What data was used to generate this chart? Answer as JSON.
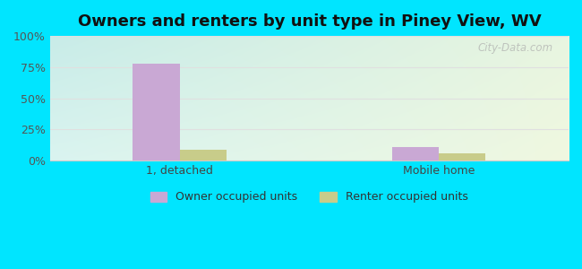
{
  "title": "Owners and renters by unit type in Piney View, WV",
  "categories": [
    "1, detached",
    "Mobile home"
  ],
  "owner_values": [
    78,
    11
  ],
  "renter_values": [
    9,
    6
  ],
  "owner_color": "#c9a8d4",
  "renter_color": "#c8cc8a",
  "bar_width": 0.18,
  "ylim": [
    0,
    100
  ],
  "yticks": [
    0,
    25,
    50,
    75,
    100
  ],
  "yticklabels": [
    "0%",
    "25%",
    "50%",
    "75%",
    "100%"
  ],
  "bg_topleft": "#c8ece8",
  "bg_topright": "#e8f5e0",
  "bg_bottomleft": "#daf4f0",
  "bg_bottomright": "#f0f8e0",
  "outer_color": "#00e5ff",
  "legend_owner": "Owner occupied units",
  "legend_renter": "Renter occupied units",
  "watermark": "City-Data.com",
  "title_fontsize": 13,
  "grid_color": "#e0e0e0"
}
